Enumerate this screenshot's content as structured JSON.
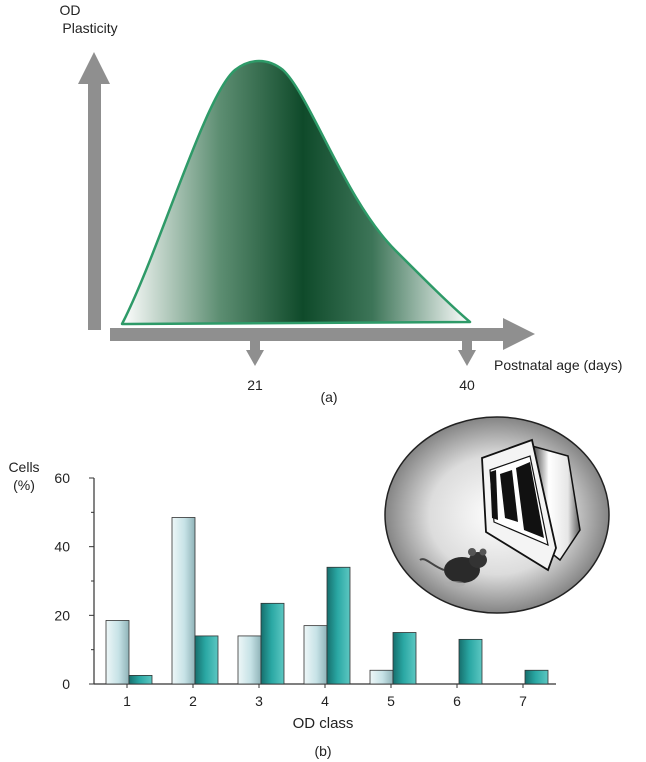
{
  "panel_a": {
    "y_label_line1": "OD",
    "y_label_line2": "Plasticity",
    "x_label": "Postnatal age (days)",
    "markers": [
      {
        "label": "21",
        "age": 21
      },
      {
        "label": "40",
        "age": 40
      }
    ],
    "caption": "(a)",
    "colors": {
      "curve": "#2e9a68",
      "fill_dark": "#0f4a2a",
      "arrow": "#8f8f8f"
    }
  },
  "chart_data": {
    "type": "bar",
    "categories": [
      "1",
      "2",
      "3",
      "4",
      "5",
      "6",
      "7"
    ],
    "series": [
      {
        "values": [
          18.5,
          48.5,
          14,
          17,
          4,
          0,
          0
        ],
        "color": "#c6e2e6"
      },
      {
        "values": [
          2.5,
          14,
          23.5,
          34,
          15,
          13,
          4
        ],
        "color": "#2aa7a3"
      }
    ],
    "xlabel": "OD class",
    "ylabel_line1": "Cells",
    "ylabel_line2": "(%)",
    "ylim": [
      0,
      60
    ],
    "yticks": [
      0,
      20,
      40,
      60
    ],
    "grid": false,
    "caption": "(b)"
  }
}
